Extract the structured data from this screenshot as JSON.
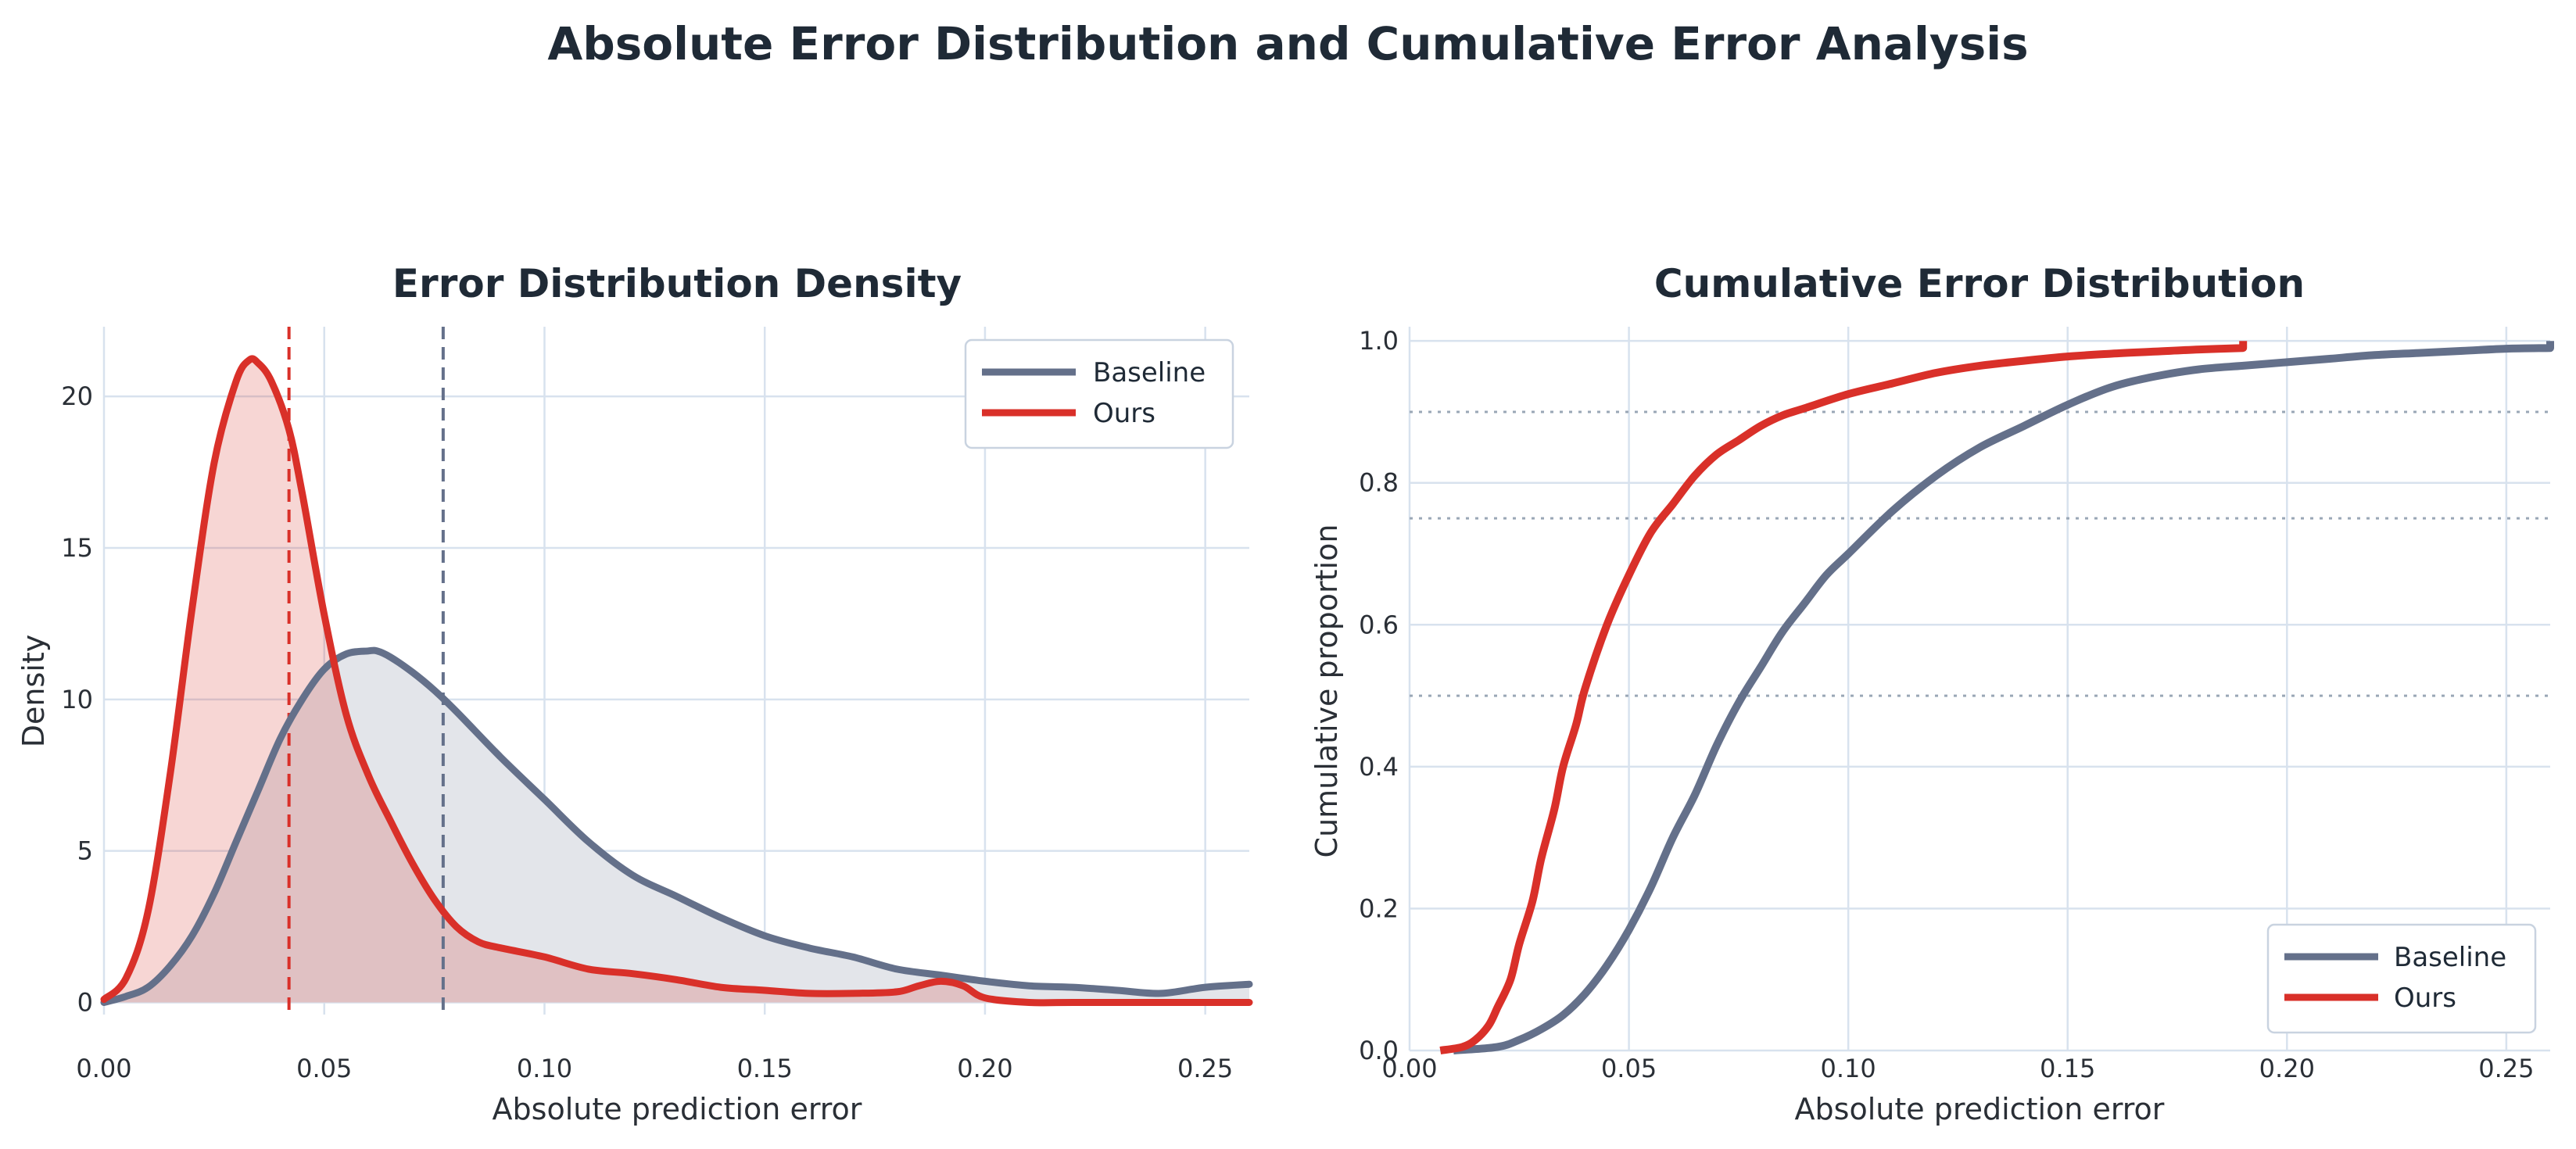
{
  "figure": {
    "title": "Absolute Error Distribution and Cumulative Error Analysis"
  },
  "colors": {
    "baseline": "#64708a",
    "ours": "#d93029",
    "baseline_fill": "#e3e5ea",
    "ours_fill": "rgba(217,48,41,0.20)"
  },
  "chart_data": [
    {
      "type": "area",
      "title": "Error Distribution Density",
      "xlabel": "Absolute prediction error",
      "ylabel": "Density",
      "xlim": [
        0.0,
        0.26
      ],
      "ylim": [
        -0.4,
        22.3
      ],
      "xticks": [
        0.0,
        0.05,
        0.1,
        0.15,
        0.2,
        0.25
      ],
      "xtick_labels": [
        "0.00",
        "0.05",
        "0.10",
        "0.15",
        "0.20",
        "0.25"
      ],
      "yticks": [
        0,
        5,
        10,
        15,
        20
      ],
      "ytick_labels": [
        "0",
        "5",
        "10",
        "15",
        "20"
      ],
      "grid": true,
      "legend": "top-right",
      "series": [
        {
          "name": "Baseline",
          "color_key": "baseline",
          "mean_line": 0.077,
          "x": [
            0.0,
            0.005,
            0.01,
            0.015,
            0.02,
            0.025,
            0.03,
            0.035,
            0.04,
            0.045,
            0.05,
            0.055,
            0.06,
            0.062,
            0.065,
            0.07,
            0.075,
            0.08,
            0.09,
            0.1,
            0.11,
            0.12,
            0.13,
            0.14,
            0.15,
            0.16,
            0.17,
            0.18,
            0.19,
            0.2,
            0.21,
            0.22,
            0.23,
            0.24,
            0.25,
            0.26
          ],
          "values": [
            0.0,
            0.2,
            0.5,
            1.2,
            2.2,
            3.6,
            5.3,
            7.0,
            8.7,
            10.0,
            11.0,
            11.5,
            11.6,
            11.6,
            11.4,
            10.9,
            10.3,
            9.6,
            8.1,
            6.7,
            5.3,
            4.2,
            3.5,
            2.8,
            2.2,
            1.8,
            1.5,
            1.1,
            0.9,
            0.7,
            0.55,
            0.5,
            0.4,
            0.3,
            0.5,
            0.6
          ]
        },
        {
          "name": "Ours",
          "color_key": "ours",
          "mean_line": 0.042,
          "x": [
            0.0,
            0.005,
            0.01,
            0.015,
            0.02,
            0.025,
            0.03,
            0.033,
            0.035,
            0.038,
            0.042,
            0.045,
            0.05,
            0.055,
            0.06,
            0.065,
            0.07,
            0.075,
            0.08,
            0.085,
            0.09,
            0.1,
            0.11,
            0.12,
            0.13,
            0.14,
            0.15,
            0.16,
            0.17,
            0.18,
            0.185,
            0.19,
            0.195,
            0.2,
            0.21,
            0.22,
            0.26
          ],
          "values": [
            0.1,
            0.8,
            3.0,
            7.5,
            13.0,
            17.8,
            20.5,
            21.2,
            21.1,
            20.5,
            18.9,
            16.8,
            12.8,
            9.5,
            7.5,
            6.0,
            4.6,
            3.4,
            2.5,
            2.0,
            1.8,
            1.5,
            1.1,
            0.95,
            0.75,
            0.5,
            0.4,
            0.3,
            0.3,
            0.35,
            0.55,
            0.7,
            0.55,
            0.15,
            0.0,
            0.0,
            0.0
          ]
        }
      ]
    },
    {
      "type": "line",
      "title": "Cumulative Error Distribution",
      "xlabel": "Absolute prediction error",
      "ylabel": "Cumulative proportion",
      "xlim": [
        0.0,
        0.26
      ],
      "ylim": [
        0.0,
        1.02
      ],
      "xticks": [
        0.0,
        0.05,
        0.1,
        0.15,
        0.2,
        0.25
      ],
      "xtick_labels": [
        "0.00",
        "0.05",
        "0.10",
        "0.15",
        "0.20",
        "0.25"
      ],
      "yticks": [
        0.0,
        0.2,
        0.4,
        0.6,
        0.8,
        1.0
      ],
      "ytick_labels": [
        "0.0",
        "0.2",
        "0.4",
        "0.6",
        "0.8",
        "1.0"
      ],
      "reference_lines": [
        0.5,
        0.75,
        0.9
      ],
      "grid": true,
      "legend": "bottom-right",
      "series": [
        {
          "name": "Baseline",
          "color_key": "baseline",
          "x": [
            0.01,
            0.02,
            0.025,
            0.03,
            0.035,
            0.04,
            0.045,
            0.05,
            0.055,
            0.06,
            0.065,
            0.07,
            0.075,
            0.08,
            0.085,
            0.09,
            0.095,
            0.1,
            0.11,
            0.12,
            0.13,
            0.14,
            0.15,
            0.16,
            0.17,
            0.18,
            0.19,
            0.2,
            0.21,
            0.22,
            0.23,
            0.24,
            0.25,
            0.26,
            0.26
          ],
          "values": [
            0.0,
            0.005,
            0.015,
            0.03,
            0.05,
            0.08,
            0.12,
            0.17,
            0.23,
            0.3,
            0.36,
            0.43,
            0.49,
            0.54,
            0.59,
            0.63,
            0.67,
            0.7,
            0.76,
            0.81,
            0.85,
            0.88,
            0.91,
            0.935,
            0.95,
            0.96,
            0.965,
            0.97,
            0.975,
            0.98,
            0.983,
            0.986,
            0.989,
            0.99,
            1.0
          ]
        },
        {
          "name": "Ours",
          "color_key": "ours",
          "x": [
            0.007,
            0.012,
            0.015,
            0.018,
            0.02,
            0.023,
            0.025,
            0.028,
            0.03,
            0.033,
            0.035,
            0.038,
            0.04,
            0.045,
            0.05,
            0.055,
            0.06,
            0.065,
            0.07,
            0.075,
            0.08,
            0.085,
            0.09,
            0.1,
            0.11,
            0.12,
            0.13,
            0.14,
            0.15,
            0.16,
            0.17,
            0.18,
            0.19,
            0.19
          ],
          "values": [
            0.0,
            0.005,
            0.015,
            0.035,
            0.06,
            0.1,
            0.15,
            0.21,
            0.27,
            0.34,
            0.4,
            0.46,
            0.51,
            0.6,
            0.67,
            0.73,
            0.77,
            0.81,
            0.84,
            0.86,
            0.88,
            0.895,
            0.905,
            0.925,
            0.94,
            0.955,
            0.965,
            0.972,
            0.978,
            0.982,
            0.985,
            0.988,
            0.99,
            1.0
          ]
        }
      ]
    }
  ]
}
